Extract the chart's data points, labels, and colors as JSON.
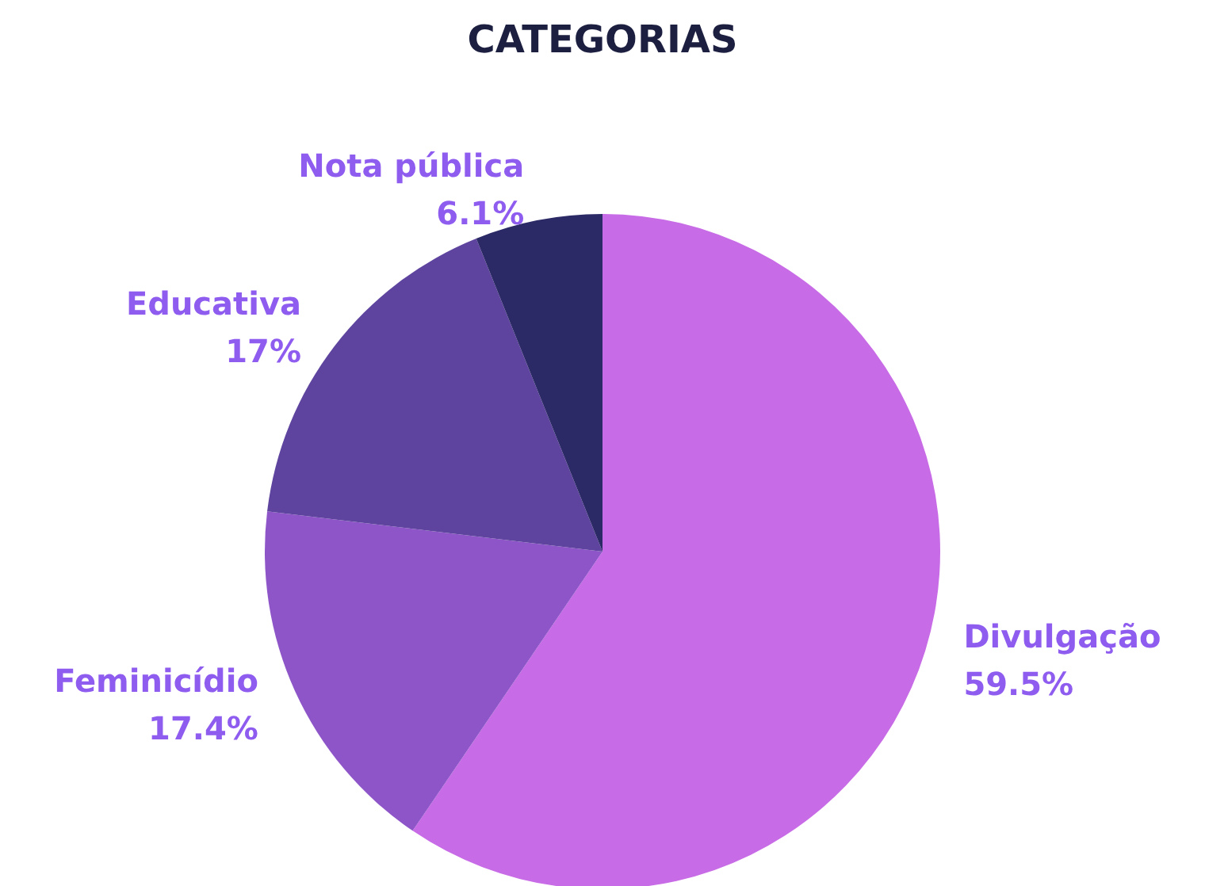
{
  "chart_data": {
    "type": "pie",
    "title": "CATEGORIAS",
    "categories": [
      "Divulgação",
      "Feminicídio",
      "Educativa",
      "Nota pública"
    ],
    "values": [
      59.5,
      17.4,
      17,
      6.1
    ],
    "colors": [
      "#c86be6",
      "#8e55c9",
      "#5e449e",
      "#2b2a66"
    ],
    "value_labels": [
      "59.5%",
      "17.4%",
      "17%",
      "6.1%"
    ]
  }
}
